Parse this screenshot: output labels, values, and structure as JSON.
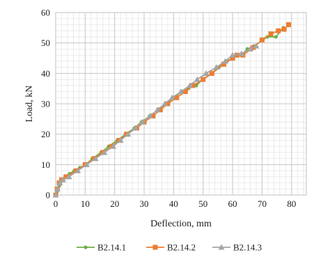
{
  "chart_data": {
    "type": "line",
    "xlabel": "Deflection, mm",
    "ylabel": "Load, kN",
    "xlim": [
      0,
      85
    ],
    "ylim": [
      0,
      60
    ],
    "x_ticks": [
      0,
      10,
      20,
      30,
      40,
      50,
      60,
      70,
      80
    ],
    "y_ticks": [
      0,
      10,
      20,
      30,
      40,
      50,
      60
    ],
    "minor_grid": true,
    "legend_position": "bottom",
    "series": [
      {
        "name": "B2.14.1",
        "color": "#70ad47",
        "marker": "circle",
        "points": [
          [
            0,
            0
          ],
          [
            0.4,
            1
          ],
          [
            0.8,
            2
          ],
          [
            1.2,
            3
          ],
          [
            1.6,
            4
          ],
          [
            2.2,
            5
          ],
          [
            3.3,
            6
          ],
          [
            4.7,
            7
          ],
          [
            6.3,
            8
          ],
          [
            8.2,
            9
          ],
          [
            10.2,
            10
          ],
          [
            12.4,
            12
          ],
          [
            15.4,
            14
          ],
          [
            18.0,
            16
          ],
          [
            20.9,
            18
          ],
          [
            23.7,
            20
          ],
          [
            26.7,
            22
          ],
          [
            29.1,
            24
          ],
          [
            31.9,
            26
          ],
          [
            34.7,
            28
          ],
          [
            37.3,
            30
          ],
          [
            40.0,
            32
          ],
          [
            42.8,
            34
          ],
          [
            45.0,
            35
          ],
          [
            47.7,
            36
          ],
          [
            49.8,
            38
          ],
          [
            52.8,
            40
          ],
          [
            55.3,
            42
          ],
          [
            58.0,
            44
          ],
          [
            60.2,
            45
          ],
          [
            62.8,
            46
          ],
          [
            65.0,
            48
          ],
          [
            67.3,
            49
          ],
          [
            71.8,
            52
          ],
          [
            74.7,
            52
          ],
          [
            77.2,
            55
          ]
        ]
      },
      {
        "name": "B2.14.2",
        "color": "#ed7d31",
        "marker": "square",
        "points": [
          [
            0,
            0
          ],
          [
            0.5,
            2
          ],
          [
            1.2,
            4
          ],
          [
            2.0,
            5
          ],
          [
            3.5,
            6
          ],
          [
            7.0,
            8
          ],
          [
            10.0,
            10
          ],
          [
            13.0,
            12
          ],
          [
            16.0,
            14
          ],
          [
            19.0,
            16
          ],
          [
            21.5,
            18
          ],
          [
            24.0,
            20
          ],
          [
            27.5,
            22
          ],
          [
            30.0,
            24
          ],
          [
            33.0,
            26
          ],
          [
            35.5,
            28
          ],
          [
            38.0,
            30
          ],
          [
            41.0,
            32
          ],
          [
            44.0,
            34
          ],
          [
            46.5,
            36
          ],
          [
            50.0,
            38
          ],
          [
            53.0,
            40
          ],
          [
            57.0,
            43
          ],
          [
            60.0,
            45
          ],
          [
            61.5,
            46
          ],
          [
            63.5,
            46
          ],
          [
            67.0,
            48.5
          ],
          [
            70.0,
            51
          ],
          [
            73.0,
            53
          ],
          [
            75.5,
            54
          ],
          [
            77.5,
            54.5
          ],
          [
            79.0,
            56
          ]
        ]
      },
      {
        "name": "B2.14.3",
        "color": "#a5a5a5",
        "marker": "triangle",
        "points": [
          [
            0,
            0
          ],
          [
            0.6,
            2
          ],
          [
            1.4,
            4
          ],
          [
            2.5,
            5
          ],
          [
            4.5,
            6
          ],
          [
            7.5,
            8
          ],
          [
            10.5,
            10
          ],
          [
            13.5,
            12
          ],
          [
            16.5,
            14
          ],
          [
            19.5,
            16
          ],
          [
            22.0,
            18
          ],
          [
            24.5,
            20
          ],
          [
            27.0,
            22
          ],
          [
            29.5,
            24
          ],
          [
            32.0,
            26
          ],
          [
            34.5,
            28
          ],
          [
            37.0,
            30
          ],
          [
            39.5,
            32
          ],
          [
            42.5,
            34
          ],
          [
            45.5,
            36
          ],
          [
            48.0,
            38
          ],
          [
            51.0,
            40
          ],
          [
            54.5,
            42
          ],
          [
            57.5,
            44
          ],
          [
            60.0,
            46
          ],
          [
            63.0,
            46.5
          ],
          [
            66.0,
            48
          ],
          [
            68.0,
            49
          ]
        ]
      }
    ]
  }
}
